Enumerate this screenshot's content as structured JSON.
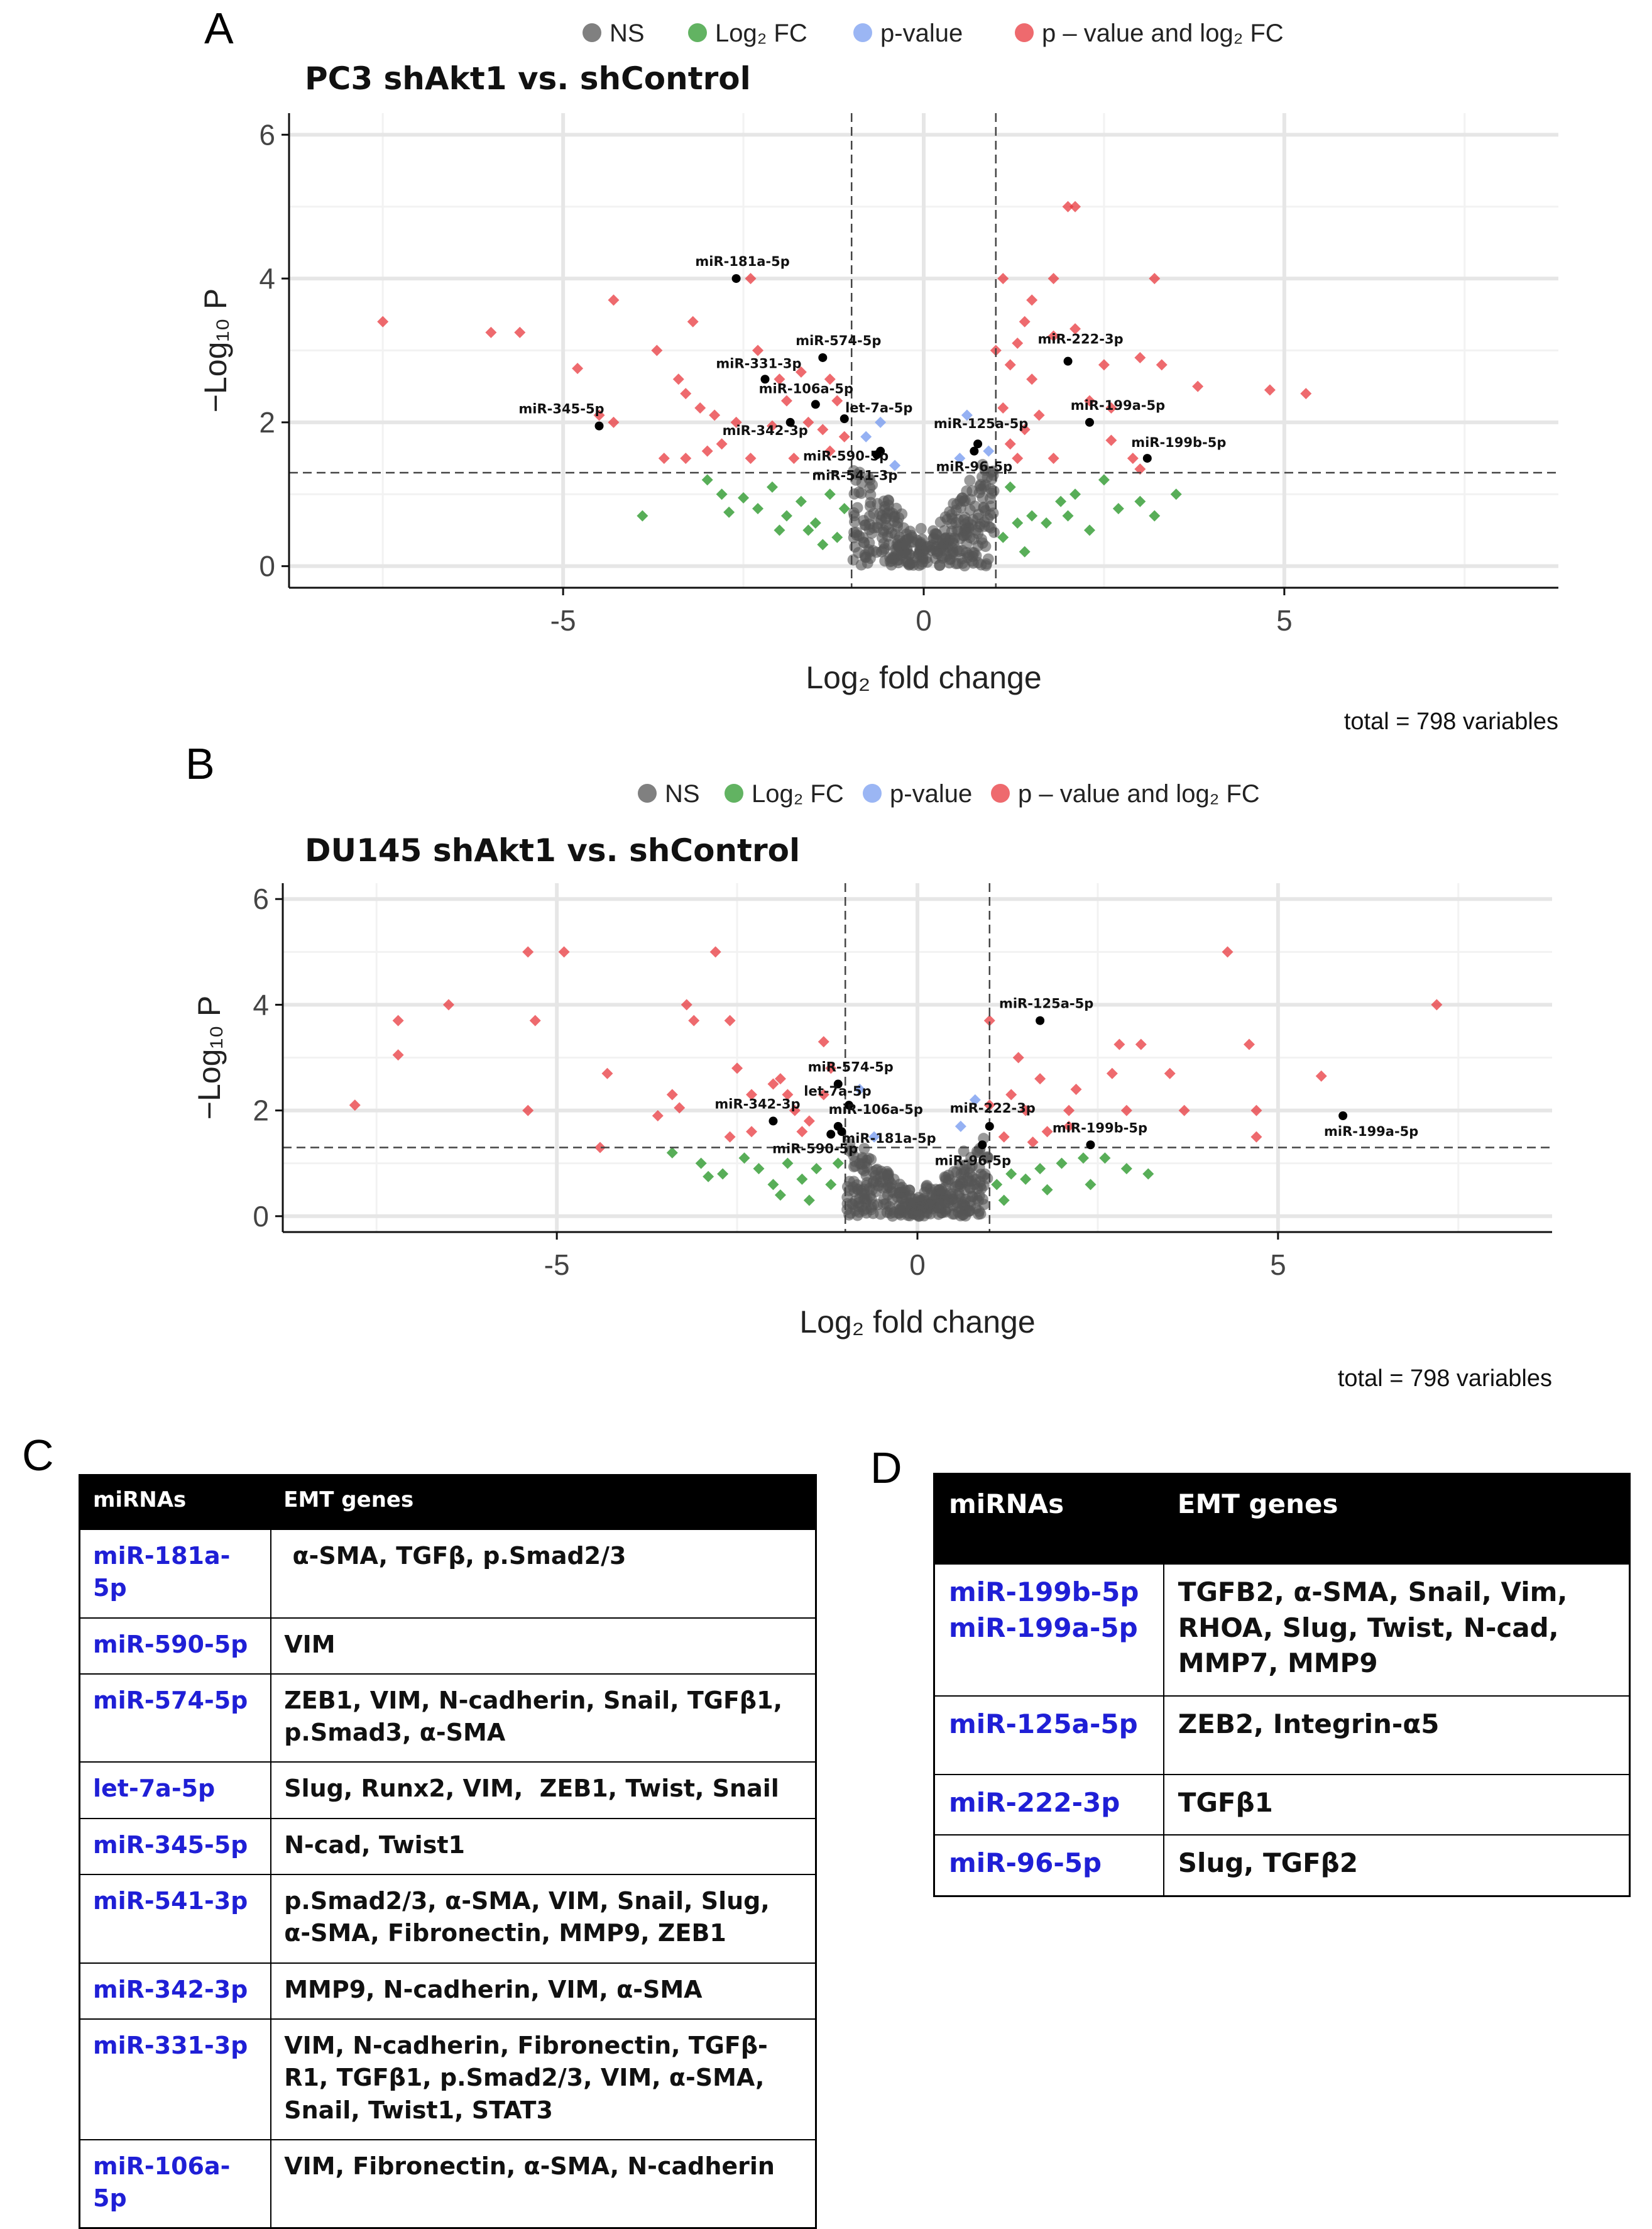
{
  "panel_letters": {
    "a": "A",
    "b": "B",
    "c": "C",
    "d": "D"
  },
  "legend": {
    "ns": "NS",
    "log2fc": "Log₂ FC",
    "pvalue": "p-value",
    "both": "p – value and log₂ FC"
  },
  "colors": {
    "ns": "#555555",
    "log2fc": "#2e9a2e",
    "pvalue": "#7a9ef0",
    "both": "#e8383d",
    "label_point": "#000000",
    "grid_major": "#e6e6e6",
    "grid_minor": "#f2f2f2",
    "mir_text": "#1f1fd6"
  },
  "chart_data": [
    {
      "type": "scatter",
      "title": "PC3 shAkt1 vs. shControl",
      "xlabel": "Log₂ fold change",
      "ylabel": "−Log₁₀ P",
      "xlim": [
        -8.8,
        8.8
      ],
      "ylim": [
        -0.3,
        6.3
      ],
      "xticks": [
        -5,
        0,
        5
      ],
      "yticks": [
        0,
        2,
        4,
        6
      ],
      "fc_cutoff": 1,
      "p_cutoff": 1.3,
      "caption": "total = 798 variables",
      "labeled_points": [
        {
          "name": "miR-181a-5p",
          "x": -2.6,
          "y": 4.0
        },
        {
          "name": "miR-574-5p",
          "x": -1.4,
          "y": 2.9
        },
        {
          "name": "miR-331-3p",
          "x": -2.2,
          "y": 2.6
        },
        {
          "name": "miR-106a-5p",
          "x": -1.5,
          "y": 2.25
        },
        {
          "name": "let-7a-5p",
          "x": -1.1,
          "y": 2.05
        },
        {
          "name": "miR-345-5p",
          "x": -4.5,
          "y": 1.95
        },
        {
          "name": "miR-342-3p",
          "x": -1.85,
          "y": 2.0
        },
        {
          "name": "miR-590-5p",
          "x": -0.6,
          "y": 1.6
        },
        {
          "name": "miR-541-3p",
          "x": -0.65,
          "y": 1.55
        },
        {
          "name": "miR-125a-5p",
          "x": 0.75,
          "y": 1.7
        },
        {
          "name": "miR-96-5p",
          "x": 0.7,
          "y": 1.6
        },
        {
          "name": "miR-222-3p",
          "x": 2.0,
          "y": 2.85
        },
        {
          "name": "miR-199a-5p",
          "x": 2.3,
          "y": 2.0
        },
        {
          "name": "miR-199b-5p",
          "x": 3.1,
          "y": 1.5
        }
      ],
      "sig_points": [
        [
          -7.5,
          3.4
        ],
        [
          -6.0,
          3.25
        ],
        [
          -5.6,
          3.25
        ],
        [
          -4.3,
          3.7
        ],
        [
          -4.8,
          2.75
        ],
        [
          -4.5,
          2.1
        ],
        [
          -4.3,
          2.0
        ],
        [
          -3.2,
          3.4
        ],
        [
          -3.7,
          3.0
        ],
        [
          -3.4,
          2.6
        ],
        [
          -3.3,
          2.4
        ],
        [
          -3.1,
          2.2
        ],
        [
          -2.9,
          2.1
        ],
        [
          -3.6,
          1.5
        ],
        [
          -3.3,
          1.5
        ],
        [
          -3.0,
          1.6
        ],
        [
          -2.4,
          4.0
        ],
        [
          -2.3,
          3.0
        ],
        [
          -2.0,
          2.6
        ],
        [
          -1.7,
          2.7
        ],
        [
          -1.3,
          2.6
        ],
        [
          -1.9,
          2.3
        ],
        [
          -1.6,
          2.0
        ],
        [
          -1.4,
          1.9
        ],
        [
          -2.1,
          1.95
        ],
        [
          -1.2,
          2.3
        ],
        [
          -2.6,
          2.0
        ],
        [
          -2.4,
          1.5
        ],
        [
          -1.8,
          1.5
        ],
        [
          -1.3,
          1.6
        ],
        [
          -1.1,
          1.8
        ],
        [
          -2.8,
          1.7
        ],
        [
          1.1,
          4.0
        ],
        [
          1.8,
          4.0
        ],
        [
          2.0,
          5.0
        ],
        [
          2.1,
          5.0
        ],
        [
          3.2,
          4.0
        ],
        [
          1.5,
          3.7
        ],
        [
          1.4,
          3.4
        ],
        [
          2.1,
          3.3
        ],
        [
          1.8,
          3.2
        ],
        [
          1.3,
          3.1
        ],
        [
          1.0,
          3.0
        ],
        [
          1.2,
          2.8
        ],
        [
          2.5,
          2.8
        ],
        [
          3.0,
          2.9
        ],
        [
          3.3,
          2.8
        ],
        [
          3.8,
          2.5
        ],
        [
          4.8,
          2.45
        ],
        [
          5.3,
          2.4
        ],
        [
          1.5,
          2.6
        ],
        [
          2.3,
          2.3
        ],
        [
          2.6,
          2.2
        ],
        [
          1.1,
          2.2
        ],
        [
          1.4,
          1.9
        ],
        [
          2.6,
          1.75
        ],
        [
          1.8,
          1.5
        ],
        [
          2.9,
          1.5
        ],
        [
          3.0,
          1.35
        ],
        [
          1.3,
          1.5
        ],
        [
          1.6,
          2.1
        ],
        [
          1.2,
          1.7
        ]
      ],
      "fc_points": [
        [
          -3.9,
          0.7
        ],
        [
          -3.0,
          1.2
        ],
        [
          -2.8,
          1.0
        ],
        [
          -2.5,
          0.95
        ],
        [
          -2.3,
          0.8
        ],
        [
          -2.1,
          1.1
        ],
        [
          -1.9,
          0.7
        ],
        [
          -1.7,
          0.9
        ],
        [
          -1.5,
          0.6
        ],
        [
          -1.3,
          1.0
        ],
        [
          -1.2,
          0.4
        ],
        [
          -1.1,
          0.8
        ],
        [
          -2.7,
          0.75
        ],
        [
          -1.6,
          0.5
        ],
        [
          -2.0,
          0.5
        ],
        [
          -1.4,
          0.3
        ],
        [
          1.1,
          0.4
        ],
        [
          1.3,
          0.6
        ],
        [
          1.5,
          0.7
        ],
        [
          1.7,
          0.6
        ],
        [
          1.9,
          0.9
        ],
        [
          2.1,
          1.0
        ],
        [
          2.5,
          1.2
        ],
        [
          2.7,
          0.8
        ],
        [
          3.0,
          0.9
        ],
        [
          3.5,
          1.0
        ],
        [
          1.2,
          1.1
        ],
        [
          2.3,
          0.5
        ],
        [
          1.4,
          0.2
        ],
        [
          2.0,
          0.7
        ],
        [
          3.2,
          0.7
        ]
      ],
      "pv_points": [
        [
          -0.8,
          1.8
        ],
        [
          0.6,
          2.1
        ],
        [
          -0.4,
          1.4
        ],
        [
          0.9,
          1.6
        ],
        [
          0.5,
          1.5
        ],
        [
          -0.6,
          2.0
        ]
      ]
    },
    {
      "type": "scatter",
      "title": "DU145 shAkt1 vs. shControl",
      "xlabel": "Log₂ fold change",
      "ylabel": "−Log₁₀ P",
      "xlim": [
        -8.8,
        8.8
      ],
      "ylim": [
        -0.3,
        6.3
      ],
      "xticks": [
        -5,
        0,
        5
      ],
      "yticks": [
        0,
        2,
        4,
        6
      ],
      "fc_cutoff": 1,
      "p_cutoff": 1.3,
      "caption": "total = 798 variables",
      "labeled_points": [
        {
          "name": "miR-125a-5p",
          "x": 1.7,
          "y": 3.7
        },
        {
          "name": "miR-574-5p",
          "x": -1.1,
          "y": 2.5
        },
        {
          "name": "let-7a-5p",
          "x": -0.95,
          "y": 2.1
        },
        {
          "name": "miR-342-3p",
          "x": -2.0,
          "y": 1.8
        },
        {
          "name": "miR-106a-5p",
          "x": -1.1,
          "y": 1.7
        },
        {
          "name": "miR-590-5p",
          "x": -1.2,
          "y": 1.55
        },
        {
          "name": "miR-181a-5p",
          "x": -1.05,
          "y": 1.6
        },
        {
          "name": "miR-222-3p",
          "x": 1.0,
          "y": 1.7
        },
        {
          "name": "miR-96-5p",
          "x": 0.9,
          "y": 1.35
        },
        {
          "name": "miR-199b-5p",
          "x": 2.4,
          "y": 1.35
        },
        {
          "name": "miR-199a-5p",
          "x": 5.9,
          "y": 1.9
        }
      ],
      "sig_points": [
        [
          -7.8,
          2.1
        ],
        [
          -7.2,
          3.7
        ],
        [
          -7.2,
          3.05
        ],
        [
          -6.5,
          4.0
        ],
        [
          -5.4,
          5.0
        ],
        [
          -4.9,
          5.0
        ],
        [
          -5.3,
          3.7
        ],
        [
          -5.4,
          2.0
        ],
        [
          -4.3,
          2.7
        ],
        [
          -4.4,
          1.3
        ],
        [
          -3.6,
          1.9
        ],
        [
          -3.4,
          2.3
        ],
        [
          -3.1,
          3.7
        ],
        [
          -3.2,
          4.0
        ],
        [
          -3.3,
          2.05
        ],
        [
          -2.8,
          5.0
        ],
        [
          -2.6,
          3.7
        ],
        [
          -2.5,
          2.8
        ],
        [
          -2.3,
          2.3
        ],
        [
          -2.0,
          2.5
        ],
        [
          -1.9,
          2.6
        ],
        [
          -1.8,
          2.3
        ],
        [
          -1.7,
          2.0
        ],
        [
          -1.5,
          1.8
        ],
        [
          -1.3,
          2.3
        ],
        [
          -1.3,
          3.3
        ],
        [
          -1.2,
          2.8
        ],
        [
          -2.3,
          1.6
        ],
        [
          -2.6,
          1.5
        ],
        [
          -1.6,
          1.6
        ],
        [
          1.0,
          3.7
        ],
        [
          1.0,
          2.1
        ],
        [
          1.3,
          2.3
        ],
        [
          1.4,
          3.0
        ],
        [
          1.5,
          2.0
        ],
        [
          1.7,
          2.6
        ],
        [
          2.1,
          2.0
        ],
        [
          2.2,
          2.4
        ],
        [
          2.7,
          2.7
        ],
        [
          2.8,
          3.25
        ],
        [
          3.1,
          3.25
        ],
        [
          3.5,
          2.7
        ],
        [
          3.7,
          2.0
        ],
        [
          4.3,
          5.0
        ],
        [
          4.6,
          3.25
        ],
        [
          4.7,
          2.0
        ],
        [
          4.7,
          1.5
        ],
        [
          5.6,
          2.65
        ],
        [
          7.2,
          4.0
        ],
        [
          1.2,
          1.5
        ],
        [
          1.8,
          1.6
        ],
        [
          2.9,
          2.0
        ],
        [
          1.6,
          1.4
        ],
        [
          2.1,
          1.7
        ]
      ],
      "fc_points": [
        [
          -3.4,
          1.2
        ],
        [
          -3.0,
          1.0
        ],
        [
          -2.7,
          0.8
        ],
        [
          -2.4,
          1.1
        ],
        [
          -2.2,
          0.9
        ],
        [
          -2.0,
          0.6
        ],
        [
          -1.8,
          1.0
        ],
        [
          -1.6,
          0.7
        ],
        [
          -1.4,
          0.9
        ],
        [
          -1.2,
          0.6
        ],
        [
          -1.1,
          1.0
        ],
        [
          -2.9,
          0.75
        ],
        [
          -1.9,
          0.4
        ],
        [
          -1.5,
          0.3
        ],
        [
          1.1,
          0.6
        ],
        [
          1.3,
          0.8
        ],
        [
          1.5,
          0.7
        ],
        [
          1.7,
          0.9
        ],
        [
          2.0,
          1.0
        ],
        [
          2.3,
          1.1
        ],
        [
          2.6,
          1.1
        ],
        [
          2.9,
          0.9
        ],
        [
          3.2,
          0.8
        ],
        [
          1.2,
          0.3
        ],
        [
          2.4,
          0.6
        ],
        [
          1.8,
          0.5
        ]
      ],
      "pv_points": [
        [
          -0.8,
          2.4
        ],
        [
          0.8,
          2.2
        ],
        [
          0.6,
          1.7
        ],
        [
          -0.6,
          1.5
        ]
      ]
    }
  ],
  "table_c": {
    "headers": [
      "miRNAs",
      "EMT genes"
    ],
    "rows": [
      {
        "mirna": "miR-181a-5p",
        "genes": " α-SMA, TGFβ, p.Smad2/3"
      },
      {
        "mirna": "miR-590-5p",
        "genes": "VIM"
      },
      {
        "mirna": "miR-574-5p",
        "genes": "ZEB1, VIM, N-cadherin, Snail, TGFβ1, p.Smad3, α-SMA"
      },
      {
        "mirna": "let-7a-5p",
        "genes": "Slug, Runx2, VIM,  ZEB1, Twist, Snail"
      },
      {
        "mirna": "miR-345-5p",
        "genes": "N-cad, Twist1"
      },
      {
        "mirna": "miR-541-3p",
        "genes": "p.Smad2/3, α-SMA, VIM, Snail, Slug, α-SMA, Fibronectin, MMP9, ZEB1"
      },
      {
        "mirna": "miR-342-3p",
        "genes": "MMP9, N-cadherin, VIM, α-SMA"
      },
      {
        "mirna": "miR-331-3p",
        "genes": "VIM, N-cadherin, Fibronectin, TGFβ-R1, TGFβ1, p.Smad2/3, VIM, α-SMA, Snail, Twist1, STAT3"
      },
      {
        "mirna": "miR-106a-5p",
        "genes": "VIM, Fibronectin, α-SMA, N-cadherin"
      }
    ]
  },
  "table_d": {
    "headers": [
      "miRNAs",
      "EMT genes"
    ],
    "rows": [
      {
        "mirna": "miR-199b-5p",
        "mirna2": "miR-199a-5p",
        "genes": "TGFB2, α-SMA, Snail, Vim, RHOA, Slug, Twist, N-cad, MMP7, MMP9"
      },
      {
        "mirna": "miR-125a-5p",
        "genes": "ZEB2, Integrin-α5"
      },
      {
        "mirna": "miR-222-3p",
        "genes": "TGFβ1"
      },
      {
        "mirna": "miR-96-5p",
        "genes": "Slug, TGFβ2"
      }
    ]
  }
}
